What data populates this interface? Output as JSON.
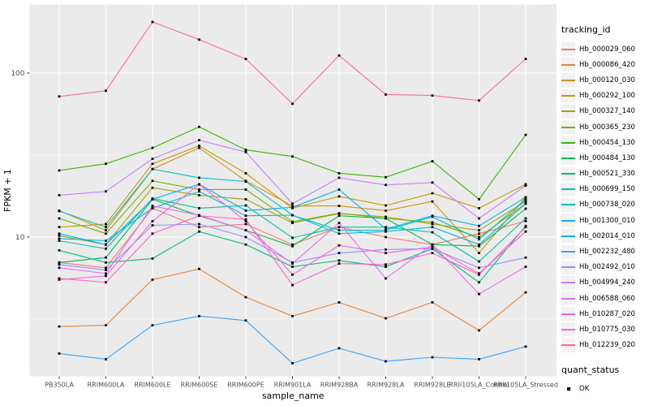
{
  "chart_data": {
    "type": "line",
    "xlabel": "sample_name",
    "ylabel": "FPKM + 1",
    "y_scale": "log10",
    "y_ticks": [
      {
        "label": "100",
        "value": 100
      },
      {
        "label": "10",
        "value": 10
      }
    ],
    "y_minor_gridlines": [
      31.62,
      3.162
    ],
    "grid": "on",
    "legend_position": "right",
    "categories": [
      "PB350LA",
      "RRIM600LA",
      "RRIM600LE",
      "RRIM600SE",
      "RRIM600PE",
      "RRIM901LA",
      "RRIM928BA",
      "RRIM928LA",
      "RRIM928LE",
      "RRII105LA_Control",
      "RRII105LA_Stressed"
    ],
    "legend": {
      "title": "tracking_id"
    },
    "legend2": {
      "title": "quant_status",
      "items": [
        {
          "label": "OK",
          "marker": "black-square"
        }
      ]
    },
    "style": {
      "panel_bg": "#EBEBEB",
      "grid_color": "#FFFFFF",
      "tick_text_color": "#4D4D4D",
      "axis_title_color": "#000000",
      "point_color": "#000000",
      "legend_key_bg": "#F2F2F2"
    },
    "series": [
      {
        "name": "Hb_000029_060",
        "color": "#F8766D",
        "values": [
          7.0,
          6.5,
          15.0,
          11.5,
          12.0,
          9.0,
          11.5,
          10.0,
          9.0,
          10.5,
          12.5
        ]
      },
      {
        "name": "Hb_000086_420",
        "color": "#EA8331",
        "values": [
          2.85,
          2.9,
          5.5,
          6.4,
          4.3,
          3.3,
          4.0,
          3.2,
          4.0,
          2.7,
          4.6
        ]
      },
      {
        "name": "Hb_000120_030",
        "color": "#D89000",
        "values": [
          14.5,
          11.0,
          26,
          35,
          22,
          15.5,
          15.5,
          14.5,
          16.5,
          8.0,
          17.5
        ]
      },
      {
        "name": "Hb_000292_100",
        "color": "#C09B00",
        "values": [
          11.5,
          12.0,
          28,
          36,
          24.5,
          15.0,
          17.7,
          15.6,
          18.5,
          15.0,
          21
        ]
      },
      {
        "name": "Hb_000327_140",
        "color": "#A3A500",
        "values": [
          10.2,
          9.0,
          20,
          18,
          17,
          12.2,
          13.9,
          13.3,
          12.0,
          11.0,
          16.5
        ]
      },
      {
        "name": "Hb_000365_230",
        "color": "#7CAE00",
        "values": [
          13.0,
          10.5,
          22,
          19.5,
          19.5,
          12.4,
          14.0,
          13.0,
          12.3,
          10.0,
          16.0
        ]
      },
      {
        "name": "Hb_000454_130",
        "color": "#39B600",
        "values": [
          25.5,
          28,
          35,
          47,
          34,
          31,
          24.5,
          23.2,
          29,
          17,
          42
        ]
      },
      {
        "name": "Hb_000484_130",
        "color": "#00BB4E",
        "values": [
          7.0,
          7.5,
          17,
          13.5,
          11,
          8.8,
          13.5,
          13.0,
          9.0,
          8.8,
          14.9
        ]
      },
      {
        "name": "Hb_000521_330",
        "color": "#00C079",
        "values": [
          8.3,
          7.0,
          7.4,
          10.8,
          9.0,
          6.6,
          7.2,
          6.6,
          8.5,
          5.3,
          11.7
        ]
      },
      {
        "name": "Hb_000699_150",
        "color": "#00C19F",
        "values": [
          9.5,
          8.5,
          17.2,
          15,
          15.6,
          9.9,
          11.5,
          11.5,
          10.7,
          7.1,
          13
        ]
      },
      {
        "name": "Hb_000738_020",
        "color": "#00BFC4",
        "values": [
          14.4,
          11.5,
          26,
          23,
          21.8,
          13.6,
          11.0,
          11.0,
          13.3,
          9.7,
          17
        ]
      },
      {
        "name": "Hb_001300_010",
        "color": "#00BAE5",
        "values": [
          9.8,
          9.5,
          15,
          19,
          13.5,
          13.6,
          10.5,
          10.8,
          11.5,
          9.0,
          16
        ]
      },
      {
        "name": "Hb_002014_010",
        "color": "#00B0F6",
        "values": [
          10.5,
          9.0,
          17,
          21,
          14.5,
          15.2,
          19.5,
          11.2,
          13.5,
          11.7,
          17.5
        ]
      },
      {
        "name": "Hb_002232_480",
        "color": "#35A2FF",
        "values": [
          1.95,
          1.8,
          2.9,
          3.3,
          3.1,
          1.7,
          2.1,
          1.75,
          1.85,
          1.8,
          2.15
        ]
      },
      {
        "name": "Hb_002492_010",
        "color": "#9590FF",
        "values": [
          6.8,
          6.3,
          11.8,
          12.0,
          10.0,
          7.0,
          8.0,
          8.4,
          8.5,
          6.5,
          7.5
        ]
      },
      {
        "name": "Hb_004994_240",
        "color": "#C77CFF",
        "values": [
          18,
          19,
          30,
          39,
          33,
          16,
          23,
          20.8,
          21.5,
          13,
          20.6
        ]
      },
      {
        "name": "Hb_006588_060",
        "color": "#E76BF3",
        "values": [
          6.5,
          6.0,
          15.5,
          13.6,
          11,
          6.9,
          12.2,
          5.6,
          9.0,
          4.5,
          6.6
        ]
      },
      {
        "name": "Hb_010287_020",
        "color": "#FA62DB",
        "values": [
          5.5,
          5.8,
          12.5,
          21,
          12.5,
          5.9,
          8.9,
          8.0,
          8.7,
          6.0,
          10.8
        ]
      },
      {
        "name": "Hb_010775_030",
        "color": "#FF61CC",
        "values": [
          5.6,
          5.3,
          10.5,
          13.5,
          12.8,
          5.1,
          6.9,
          6.8,
          8.0,
          5.9,
          11.5
        ]
      },
      {
        "name": "Hb_012239_020",
        "color": "#FF6A98",
        "values": [
          72,
          78,
          205,
          160,
          122,
          65,
          128,
          74,
          73,
          68,
          122
        ]
      }
    ]
  }
}
